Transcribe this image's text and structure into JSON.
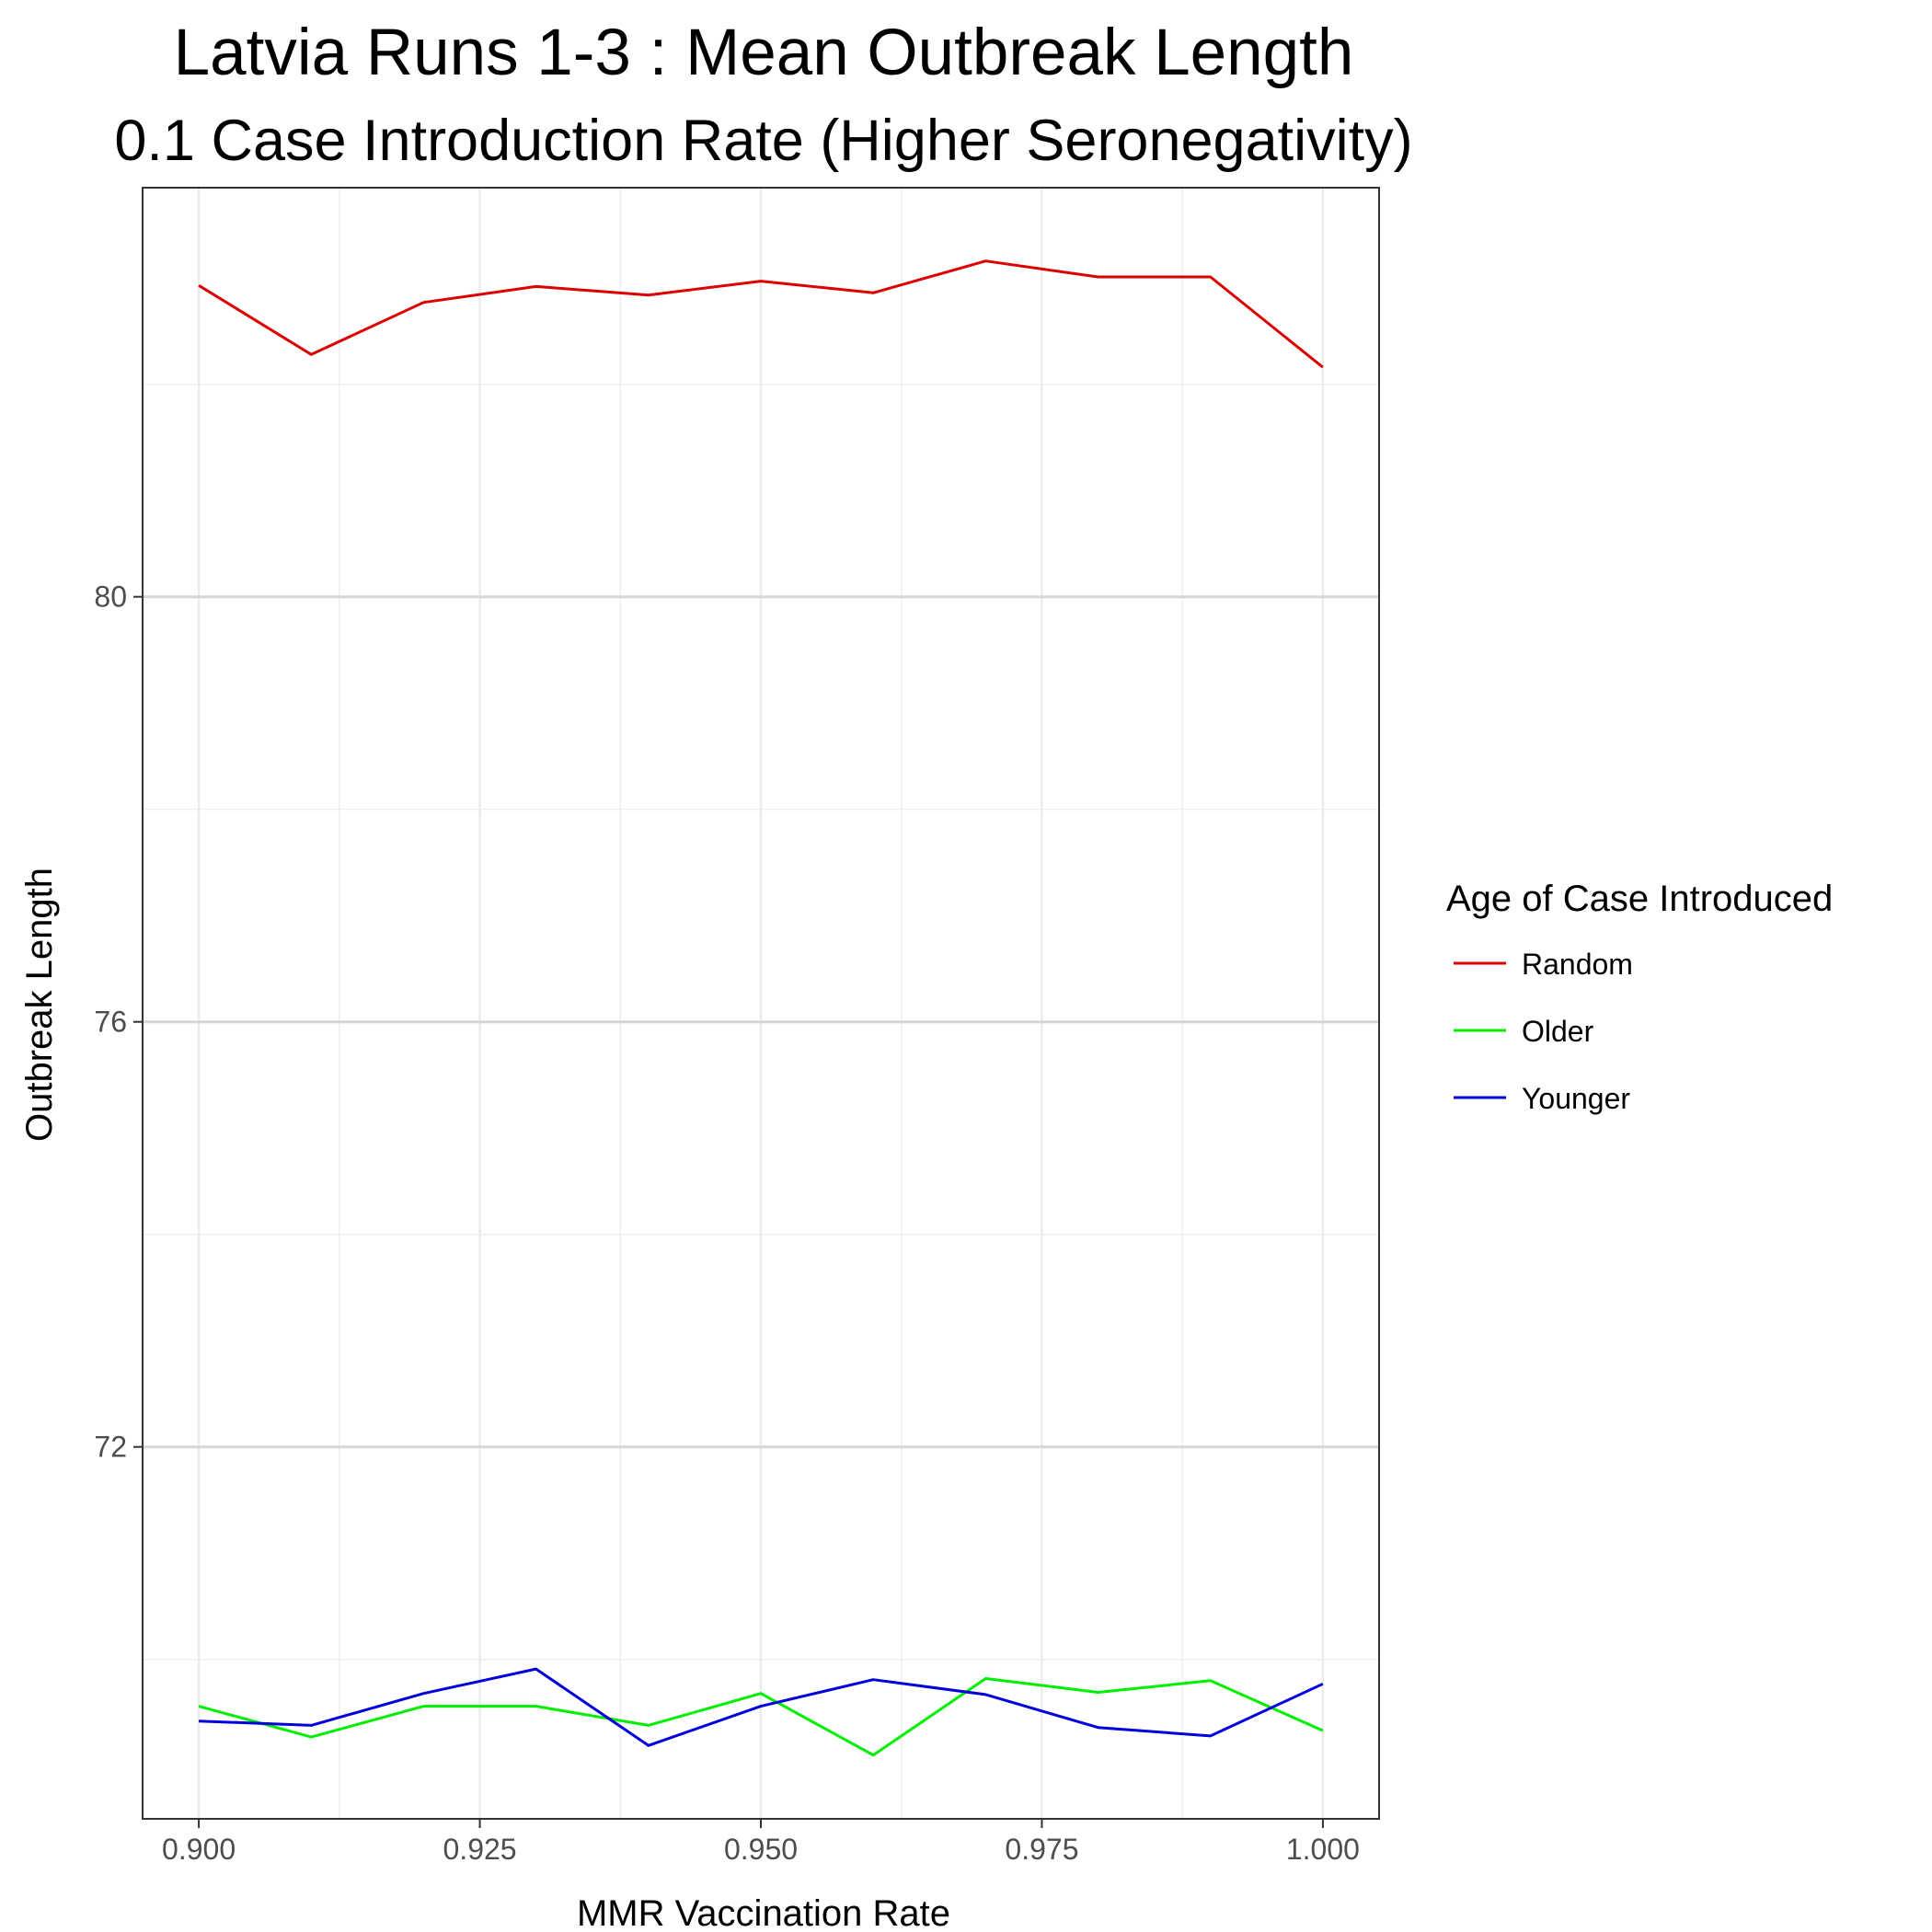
{
  "chart_data": {
    "type": "line",
    "title": "Latvia Runs 1-3 : Mean Outbreak Length",
    "subtitle": "0.1 Case Introduction Rate (Higher Seronegativity)",
    "xlabel": "MMR Vaccination Rate",
    "ylabel": "Outbreak Length",
    "xlim": [
      0.895,
      1.005
    ],
    "ylim": [
      68.5,
      83.85
    ],
    "x_ticks": [
      0.9,
      0.925,
      0.95,
      0.975,
      1.0
    ],
    "x_tick_labels": [
      "0.900",
      "0.925",
      "0.950",
      "0.975",
      "1.000"
    ],
    "y_ticks": [
      72,
      76,
      80
    ],
    "y_tick_labels": [
      "72",
      "76",
      "80"
    ],
    "grid": true,
    "legend": {
      "title": "Age of Case Introduced",
      "position": "right"
    },
    "x": [
      0.9,
      0.91,
      0.92,
      0.93,
      0.94,
      0.95,
      0.96,
      0.97,
      0.98,
      0.99,
      1.0
    ],
    "series": [
      {
        "name": "Random",
        "color": "#dd0000",
        "values": [
          82.93,
          82.28,
          82.77,
          82.92,
          82.84,
          82.97,
          82.86,
          83.16,
          83.01,
          83.01,
          82.16
        ]
      },
      {
        "name": "Older",
        "color": "#00ee00",
        "values": [
          69.56,
          69.27,
          69.56,
          69.56,
          69.38,
          69.68,
          69.1,
          69.82,
          69.69,
          69.8,
          69.33
        ]
      },
      {
        "name": "Younger",
        "color": "#0000dd",
        "values": [
          69.42,
          69.38,
          69.68,
          69.91,
          69.19,
          69.56,
          69.81,
          69.67,
          69.36,
          69.28,
          69.77
        ]
      }
    ]
  }
}
